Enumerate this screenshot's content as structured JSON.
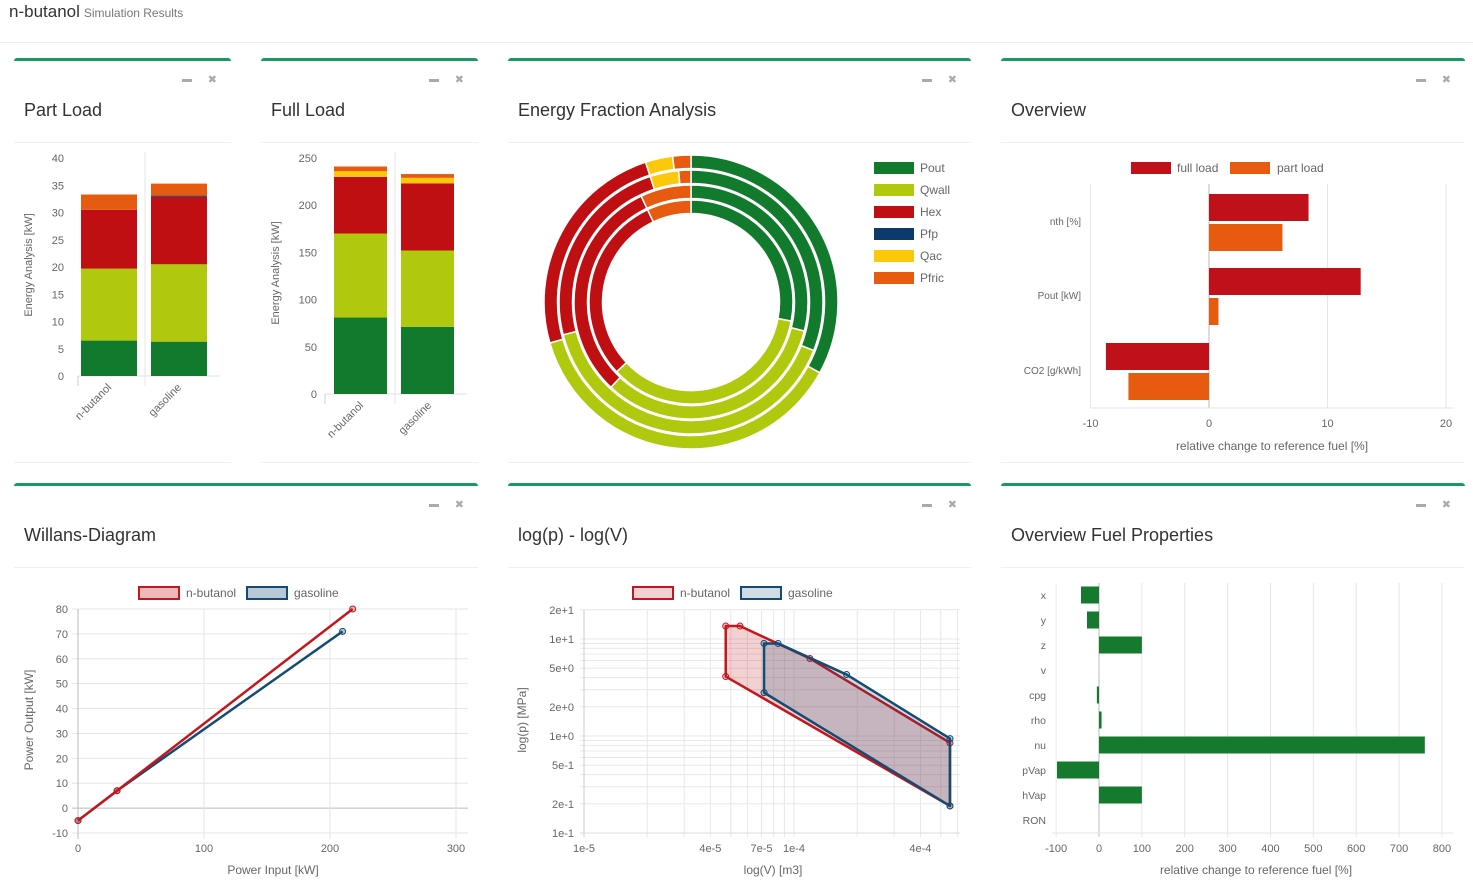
{
  "header": {
    "title": "n-butanol",
    "subtitle": "Simulation Results"
  },
  "colors": {
    "Pout": "#127a2c",
    "Qwall": "#b0c90e",
    "Hex": "#c00f12",
    "Pfp": "#0b3a6b",
    "Qac": "#fcc80a",
    "Pfric": "#e75b10",
    "full_load": "#c0101a",
    "part_load": "#e75b10",
    "fuel": "#157a2e",
    "n-butanol": "#c4161c",
    "gasoline": "#144b73",
    "panel_border": "#1a9a62"
  },
  "chart_data": [
    {
      "type": "bar",
      "stacked": true,
      "title": "Part Load",
      "ylabel": "Energy Analysis [kW]",
      "ylim": [
        0,
        40
      ],
      "yticks": [
        0,
        5,
        10,
        15,
        20,
        25,
        30,
        35,
        40
      ],
      "categories": [
        "n-butanol",
        "gasoline"
      ],
      "series": [
        {
          "name": "Pout",
          "values": [
            6.5,
            6.3
          ]
        },
        {
          "name": "Qwall",
          "values": [
            13.2,
            14.2
          ]
        },
        {
          "name": "Hex",
          "values": [
            10.8,
            12.4
          ]
        },
        {
          "name": "Pfp",
          "values": [
            0,
            0.2
          ]
        },
        {
          "name": "Qac",
          "values": [
            0,
            0
          ]
        },
        {
          "name": "Pfric",
          "values": [
            2.8,
            2.2
          ]
        }
      ]
    },
    {
      "type": "bar",
      "stacked": true,
      "title": "Full Load",
      "ylabel": "Energy Analysis [kW]",
      "ylim": [
        0,
        250
      ],
      "yticks": [
        0,
        50,
        100,
        150,
        200,
        250
      ],
      "categories": [
        "n-butanol",
        "gasoline"
      ],
      "series": [
        {
          "name": "Pout",
          "values": [
            81,
            71
          ]
        },
        {
          "name": "Qwall",
          "values": [
            89,
            81
          ]
        },
        {
          "name": "Hex",
          "values": [
            60,
            71
          ]
        },
        {
          "name": "Pfp",
          "values": [
            0,
            0
          ]
        },
        {
          "name": "Qac",
          "values": [
            6,
            6
          ]
        },
        {
          "name": "Pfric",
          "values": [
            5,
            4
          ]
        }
      ]
    },
    {
      "type": "pie",
      "donut": true,
      "title": "Energy Fraction Analysis",
      "legend": [
        "Pout",
        "Qwall",
        "Hex",
        "Pfp",
        "Qac",
        "Pfric"
      ],
      "rings": [
        {
          "values": [
            0.33,
            0.375,
            0.245,
            0,
            0.03,
            0.02
          ]
        },
        {
          "values": [
            0.31,
            0.4,
            0.24,
            0,
            0.035,
            0.015
          ]
        },
        {
          "values": [
            0.29,
            0.33,
            0.31,
            0,
            0,
            0.07
          ]
        },
        {
          "values": [
            0.28,
            0.35,
            0.3,
            0,
            0,
            0.07
          ]
        }
      ]
    },
    {
      "type": "bar",
      "orientation": "horizontal",
      "title": "Overview",
      "xlabel": "relative change to reference fuel [%]",
      "xlim": [
        -10,
        20
      ],
      "xticks": [
        -10,
        0,
        10,
        20
      ],
      "categories": [
        "nth [%]",
        "Pout [kW]",
        "CO2 [g/kWh]"
      ],
      "series": [
        {
          "name": "full load",
          "values": [
            8.4,
            12.8,
            -8.7
          ]
        },
        {
          "name": "part load",
          "values": [
            6.2,
            0.8,
            -6.8
          ]
        }
      ],
      "legend": "top"
    },
    {
      "type": "line",
      "title": "Willans-Diagram",
      "xlabel": "Power Input [kW]",
      "ylabel": "Power Output [kW]",
      "xlim": [
        0,
        310
      ],
      "ylim": [
        -10,
        80
      ],
      "xticks": [
        0,
        100,
        200,
        300
      ],
      "yticks": [
        -10,
        0,
        10,
        20,
        30,
        40,
        50,
        60,
        70,
        80
      ],
      "series": [
        {
          "name": "n-butanol",
          "x": [
            0,
            31,
            218
          ],
          "y": [
            -5,
            7,
            80
          ]
        },
        {
          "name": "gasoline",
          "x": [
            0,
            31,
            210
          ],
          "y": [
            -5,
            7,
            71
          ]
        }
      ],
      "legend": "top"
    },
    {
      "type": "area",
      "scale": "log-log",
      "title": "log(p) - log(V)",
      "xlabel": "log(V) [m3]",
      "ylabel": "log(p) [MPa]",
      "xlim": [
        1e-05,
        0.00062
      ],
      "ylim": [
        0.1,
        20
      ],
      "xtick_labels": [
        "1e-5",
        "4e-5",
        "7e-5",
        "1e-4",
        "4e-4"
      ],
      "xtick_values": [
        1e-05,
        4e-05,
        7e-05,
        0.0001,
        0.0004
      ],
      "ytick_labels": [
        "2e+1",
        "1e+1",
        "5e+0",
        "2e+0",
        "1e+0",
        "5e-1",
        "2e-1",
        "1e-1"
      ],
      "ytick_values": [
        20,
        10,
        5,
        2,
        1,
        0.5,
        0.2,
        0.1
      ],
      "series": [
        {
          "name": "n-butanol",
          "x": [
            4.73e-05,
            5.53e-05,
            0.000119,
            0.000553,
            0.000553,
            4.73e-05
          ],
          "y": [
            13.6,
            13.6,
            6.3,
            0.85,
            0.19,
            4.1
          ]
        },
        {
          "name": "gasoline",
          "x": [
            7.2e-05,
            8.4e-05,
            0.000178,
            0.000553,
            0.000553,
            7.2e-05
          ],
          "y": [
            9.0,
            9.0,
            4.3,
            0.94,
            0.19,
            2.8
          ]
        }
      ],
      "legend": "top"
    },
    {
      "type": "bar",
      "orientation": "horizontal",
      "title": "Overview Fuel Properties",
      "xlabel": "relative change to reference fuel [%]",
      "xlim": [
        -100,
        800
      ],
      "xticks": [
        -100,
        0,
        100,
        200,
        300,
        400,
        500,
        600,
        700,
        800
      ],
      "categories": [
        "x",
        "y",
        "z",
        "v",
        "cpg",
        "rho",
        "nu",
        "pVap",
        "hVap",
        "RON"
      ],
      "values": [
        -42,
        -28,
        100,
        0,
        -5,
        6,
        760,
        -98,
        100,
        0
      ]
    }
  ]
}
